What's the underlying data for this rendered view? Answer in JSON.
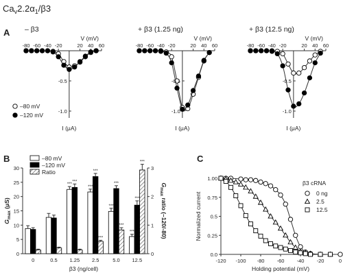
{
  "figure": {
    "title_parts": {
      "base": "Ca",
      "sub": "v",
      "rest": "2.2α",
      "sub2": "1",
      "end": "/β3"
    },
    "panel_a_letter": "A",
    "panel_b_letter": "B",
    "panel_c_letter": "C"
  },
  "chart_data": [
    {
      "type": "line",
      "panel": "A",
      "title": "– β3",
      "xlabel": "V (mV)",
      "ylabel": "I (μA)",
      "xlim": [
        -80,
        60
      ],
      "ylim": [
        -1.0,
        0
      ],
      "x_ticks": [
        -80,
        -60,
        -40,
        -20,
        20,
        40,
        60
      ],
      "y_ticks": [
        -0.5,
        -1.0
      ],
      "y_tick_labels": [
        "-0.5",
        "-1.0"
      ],
      "legend": [
        "–80 mV",
        "–120 mV"
      ],
      "series": [
        {
          "name": "–80 mV",
          "marker": "open-circle",
          "x": [
            -80,
            -70,
            -60,
            -50,
            -40,
            -30,
            -20,
            -10,
            0,
            10,
            20,
            30,
            40,
            50
          ],
          "y": [
            0,
            0,
            0,
            0,
            0,
            -0.01,
            -0.05,
            -0.18,
            -0.27,
            -0.25,
            -0.19,
            -0.1,
            -0.03,
            0
          ]
        },
        {
          "name": "–120 mV",
          "marker": "filled-circle",
          "x": [
            -80,
            -70,
            -60,
            -50,
            -40,
            -30,
            -20,
            -10,
            0,
            10,
            20,
            30,
            40,
            50
          ],
          "y": [
            0,
            0,
            0,
            0,
            0,
            -0.02,
            -0.1,
            -0.24,
            -0.31,
            -0.27,
            -0.18,
            -0.09,
            -0.02,
            0
          ]
        }
      ]
    },
    {
      "type": "line",
      "panel": "A",
      "title": "+ β3 (1.25 ng)",
      "xlabel": "V (mV)",
      "ylabel": "I (μA)",
      "xlim": [
        -80,
        60
      ],
      "ylim": [
        -1.0,
        0
      ],
      "x_ticks": [
        -80,
        -60,
        -40,
        -20,
        20,
        40,
        60
      ],
      "y_ticks": [
        -0.5,
        -1.0
      ],
      "y_tick_labels": [
        "-0.5",
        "-1.0"
      ],
      "series": [
        {
          "name": "–80 mV",
          "marker": "open-circle",
          "x": [
            -80,
            -70,
            -60,
            -50,
            -40,
            -30,
            -20,
            -10,
            0,
            10,
            20,
            30,
            40,
            50
          ],
          "y": [
            0,
            0,
            0,
            0,
            0,
            -0.02,
            -0.1,
            -0.5,
            -0.94,
            -0.96,
            -0.72,
            -0.44,
            -0.17,
            -0.03
          ]
        },
        {
          "name": "–120 mV",
          "marker": "filled-circle",
          "x": [
            -80,
            -70,
            -60,
            -50,
            -40,
            -30,
            -20,
            -10,
            0,
            10,
            20,
            30,
            40,
            50
          ],
          "y": [
            0,
            0,
            0,
            0,
            -0.01,
            -0.04,
            -0.2,
            -0.62,
            -0.97,
            -0.9,
            -0.66,
            -0.42,
            -0.16,
            -0.03
          ]
        }
      ]
    },
    {
      "type": "line",
      "panel": "A",
      "title": "+ β3 (12.5 ng)",
      "xlabel": "V (mV)",
      "ylabel": "I (μA)",
      "xlim": [
        -80,
        60
      ],
      "ylim": [
        -1.0,
        0
      ],
      "x_ticks": [
        -80,
        -60,
        -40,
        -20,
        20,
        40,
        60
      ],
      "y_ticks": [
        -0.5,
        -1.0
      ],
      "y_tick_labels": [
        "-0.5",
        "-1.0"
      ],
      "series": [
        {
          "name": "–80 mV",
          "marker": "open-circle",
          "x": [
            -80,
            -70,
            -60,
            -50,
            -40,
            -30,
            -20,
            -10,
            0,
            10,
            20,
            30,
            40,
            50
          ],
          "y": [
            0,
            0,
            0,
            0,
            0,
            -0.01,
            -0.05,
            -0.22,
            -0.37,
            -0.37,
            -0.28,
            -0.17,
            -0.07,
            -0.01
          ]
        },
        {
          "name": "–120 mV",
          "marker": "filled-circle",
          "x": [
            -80,
            -70,
            -60,
            -50,
            -40,
            -30,
            -20,
            -10,
            0,
            10,
            20,
            30,
            40,
            50
          ],
          "y": [
            0,
            0,
            0,
            0,
            -0.01,
            -0.05,
            -0.25,
            -0.65,
            -0.92,
            -0.88,
            -0.7,
            -0.45,
            -0.2,
            -0.04
          ]
        }
      ]
    },
    {
      "type": "bar",
      "panel": "B",
      "categories": [
        "0",
        "0.5",
        "1.25",
        "2.5",
        "5.0",
        "12.5"
      ],
      "xlabel": "β3 (ng/cell)",
      "ylabel": "Gmax (μS)",
      "ylabel_parts": {
        "var": "G",
        "sub": "max",
        "unit": "(μS)"
      },
      "y2label_parts": {
        "var": "G",
        "sub": "max",
        "rest": "ratio (–120/-80)"
      },
      "ylim": [
        0,
        30
      ],
      "y_ticks": [
        0,
        5,
        10,
        15,
        20,
        25,
        30
      ],
      "y2lim": [
        0,
        3
      ],
      "y2_ticks": [
        0,
        1,
        2,
        3
      ],
      "legend": [
        "–80 mV",
        "–120 mV",
        "Ratio"
      ],
      "series": [
        {
          "name": "–80 mV",
          "fill": "#ffffff",
          "values": [
            8.8,
            12.7,
            22.5,
            21.6,
            14.8,
            6.0
          ],
          "errors": [
            1.0,
            1.4,
            1.0,
            1.0,
            1.1,
            0.8
          ]
        },
        {
          "name": "–120 mV",
          "fill": "#000000",
          "values": [
            8.5,
            12.5,
            23.2,
            27.0,
            22.8,
            17.0
          ],
          "errors": [
            0.6,
            1.0,
            1.2,
            1.1,
            1.0,
            1.5
          ]
        },
        {
          "name": "Ratio",
          "fill": "hatch",
          "axis": "right",
          "values": [
            0.13,
            0.2,
            0.13,
            0.43,
            0.83,
            2.93
          ],
          "errors": [
            0.03,
            0.03,
            0.03,
            0.04,
            0.08,
            0.2
          ]
        }
      ],
      "annotations": [
        {
          "text": "***",
          "series": 0,
          "category": 2
        },
        {
          "text": "***",
          "series": 1,
          "category": 2
        },
        {
          "text": "***",
          "series": 0,
          "category": 3
        },
        {
          "text": "***",
          "series": 1,
          "category": 3
        },
        {
          "text": "***",
          "series": 0,
          "category": 4
        },
        {
          "text": "***",
          "series": 1,
          "category": 4
        },
        {
          "text": "***",
          "series": 0,
          "category": 5
        },
        {
          "text": "***",
          "series": 1,
          "category": 5
        },
        {
          "text": "***",
          "series": 2,
          "category": 3
        },
        {
          "text": "***",
          "series": 2,
          "category": 4
        },
        {
          "text": "***",
          "series": 2,
          "category": 5
        }
      ]
    },
    {
      "type": "scatter",
      "panel": "C",
      "xlabel": "Holding potential (mV)",
      "ylabel": "Normalized current",
      "xlim": [
        -120,
        0
      ],
      "ylim": [
        0,
        1.0
      ],
      "x_ticks": [
        -120,
        -100,
        -80,
        -60,
        -40,
        -20,
        0
      ],
      "y_ticks": [
        0.0,
        0.25,
        0.5,
        0.75,
        1.0
      ],
      "y_tick_labels": [
        "0.0",
        "0.25",
        "0.5",
        "0.75",
        "1.00"
      ],
      "legend_title": "β3 cRNA",
      "series": [
        {
          "name": "0 ng",
          "marker": "circle",
          "x": [
            -120,
            -115,
            -110,
            -100,
            -95,
            -90,
            -85,
            -80,
            -75,
            -70,
            -65,
            -60,
            -55,
            -50,
            -45,
            -40,
            -35,
            -30,
            -20,
            -10,
            0
          ],
          "y": [
            1.0,
            1.0,
            1.0,
            0.99,
            0.98,
            0.98,
            0.97,
            0.95,
            0.93,
            0.9,
            0.85,
            0.78,
            0.66,
            0.46,
            0.25,
            0.1,
            0.03,
            0.01,
            0,
            0,
            0
          ]
        },
        {
          "name": "2.5",
          "marker": "triangle",
          "x": [
            -120,
            -115,
            -110,
            -105,
            -100,
            -95,
            -90,
            -85,
            -80,
            -75,
            -70,
            -65,
            -60,
            -55,
            -50,
            -45,
            -40,
            -35,
            -30,
            -20,
            -10
          ],
          "y": [
            1.0,
            0.99,
            0.97,
            0.95,
            0.92,
            0.88,
            0.83,
            0.76,
            0.68,
            0.59,
            0.5,
            0.42,
            0.34,
            0.25,
            0.16,
            0.09,
            0.04,
            0.02,
            0.01,
            0,
            0
          ]
        },
        {
          "name": "12.5",
          "marker": "square",
          "x": [
            -120,
            -115,
            -110,
            -105,
            -100,
            -95,
            -90,
            -85,
            -80,
            -75,
            -70,
            -65,
            -60,
            -55,
            -50,
            -45,
            -40,
            -35,
            -30,
            -20,
            -10
          ],
          "y": [
            1.0,
            0.96,
            0.88,
            0.77,
            0.64,
            0.51,
            0.4,
            0.31,
            0.24,
            0.18,
            0.14,
            0.11,
            0.09,
            0.07,
            0.05,
            0.03,
            0.02,
            0.01,
            0,
            0,
            0
          ]
        }
      ]
    }
  ]
}
